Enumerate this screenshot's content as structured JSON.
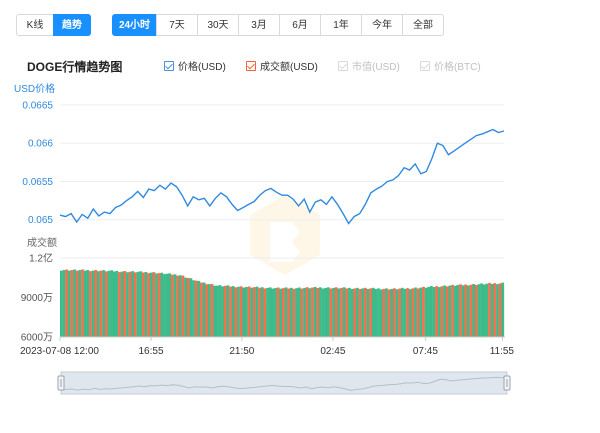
{
  "tabs": {
    "view": [
      {
        "label": "K线",
        "active": false
      },
      {
        "label": "趋势",
        "active": true
      }
    ],
    "ranges": [
      {
        "label": "24小时",
        "active": true
      },
      {
        "label": "7天",
        "active": false
      },
      {
        "label": "30天",
        "active": false
      },
      {
        "label": "3月",
        "active": false
      },
      {
        "label": "6月",
        "active": false
      },
      {
        "label": "1年",
        "active": false
      },
      {
        "label": "今年",
        "active": false
      },
      {
        "label": "全部",
        "active": false
      }
    ]
  },
  "chart_title": "DOGE行情趋势图",
  "legend": [
    {
      "label": "价格(USD)",
      "checked": true,
      "color": "#4a90e2"
    },
    {
      "label": "成交额(USD)",
      "checked": true,
      "color": "#f4623a"
    },
    {
      "label": "市值(USD)",
      "checked": false,
      "color": "#bfbfbf"
    },
    {
      "label": "价格(BTC)",
      "checked": false,
      "color": "#bfbfbf"
    }
  ],
  "colors": {
    "price_line": "#2f8ae0",
    "axis_text_blue": "#2f8ae0",
    "volume_up": "#3dbb8a",
    "volume_down": "#f4714f",
    "active_tab": "#1890ff"
  },
  "chart_data": {
    "type": "line",
    "price": {
      "ylabel": "USD价格",
      "ylim": [
        0.0648,
        0.0665
      ],
      "yticks": [
        "0.0665",
        "0.066",
        "0.0655",
        "0.065"
      ],
      "ytick_values": [
        0.0665,
        0.066,
        0.0655,
        0.065
      ],
      "x_hours": [
        0,
        0.3,
        0.6,
        0.9,
        1.2,
        1.5,
        1.8,
        2.1,
        2.4,
        2.7,
        3.0,
        3.3,
        3.6,
        3.9,
        4.2,
        4.5,
        4.8,
        5.1,
        5.4,
        5.7,
        6.0,
        6.3,
        6.6,
        6.9,
        7.2,
        7.5,
        7.8,
        8.1,
        8.4,
        8.7,
        9.0,
        9.3,
        9.6,
        9.9,
        10.2,
        10.5,
        10.8,
        11.1,
        11.4,
        11.7,
        12.0,
        12.3,
        12.6,
        12.9,
        13.2,
        13.5,
        13.8,
        14.1,
        14.4,
        14.7,
        15.0,
        15.3,
        15.6,
        15.9,
        16.2,
        16.5,
        16.8,
        17.1,
        17.4,
        17.7,
        18.0,
        18.3,
        18.6,
        18.9,
        19.2,
        19.5,
        19.8,
        20.1,
        20.4,
        20.7,
        21.0,
        21.3,
        21.6,
        21.9,
        22.2,
        22.5,
        22.8,
        23.1,
        23.4,
        23.7,
        24.0
      ],
      "values": [
        0.06506,
        0.06504,
        0.06508,
        0.06497,
        0.06507,
        0.06502,
        0.06514,
        0.06505,
        0.0651,
        0.06508,
        0.06516,
        0.06519,
        0.06525,
        0.0653,
        0.06537,
        0.06529,
        0.0654,
        0.06538,
        0.06545,
        0.0654,
        0.06548,
        0.06543,
        0.06532,
        0.06518,
        0.0653,
        0.06526,
        0.06528,
        0.06518,
        0.06528,
        0.06535,
        0.0653,
        0.0652,
        0.06512,
        0.06516,
        0.0652,
        0.06524,
        0.06532,
        0.06538,
        0.06541,
        0.06536,
        0.06532,
        0.06532,
        0.06527,
        0.06518,
        0.06527,
        0.0651,
        0.06523,
        0.06526,
        0.0652,
        0.0653,
        0.0652,
        0.06508,
        0.06495,
        0.06504,
        0.06508,
        0.0652,
        0.06535,
        0.0654,
        0.06544,
        0.0655,
        0.06552,
        0.06558,
        0.06568,
        0.06565,
        0.06573,
        0.0656,
        0.06563,
        0.0658,
        0.066,
        0.06597,
        0.06585,
        0.0659,
        0.06595,
        0.066,
        0.06605,
        0.0661,
        0.06612,
        0.06615,
        0.06618,
        0.06614,
        0.06616
      ]
    },
    "volume": {
      "ylabel": "成交额",
      "ylim": [
        6000,
        12000
      ],
      "yticks": [
        "1.2亿",
        "9000万",
        "6000万"
      ],
      "ytick_values": [
        12000,
        9000,
        6000
      ],
      "unit": "万 USD",
      "bar_count": 168,
      "profile_hours": [
        0,
        2,
        5,
        6.5,
        7.5,
        8.5,
        10,
        12,
        14,
        16,
        18,
        19,
        21,
        24
      ],
      "profile_values": [
        11100,
        11050,
        10900,
        10700,
        10200,
        9900,
        9800,
        9700,
        9750,
        9700,
        9650,
        9700,
        9900,
        10100
      ]
    },
    "x_ticks": [
      {
        "label": "2023-07-08 12:00",
        "hour": 0
      },
      {
        "label": "16:55",
        "hour": 4.92
      },
      {
        "label": "21:50",
        "hour": 9.83
      },
      {
        "label": "02:45",
        "hour": 14.75
      },
      {
        "label": "07:45",
        "hour": 19.75
      },
      {
        "label": "11:55",
        "hour": 23.92
      }
    ],
    "x_range_hours": [
      0,
      24
    ],
    "grid": true,
    "legend_position": "top"
  }
}
